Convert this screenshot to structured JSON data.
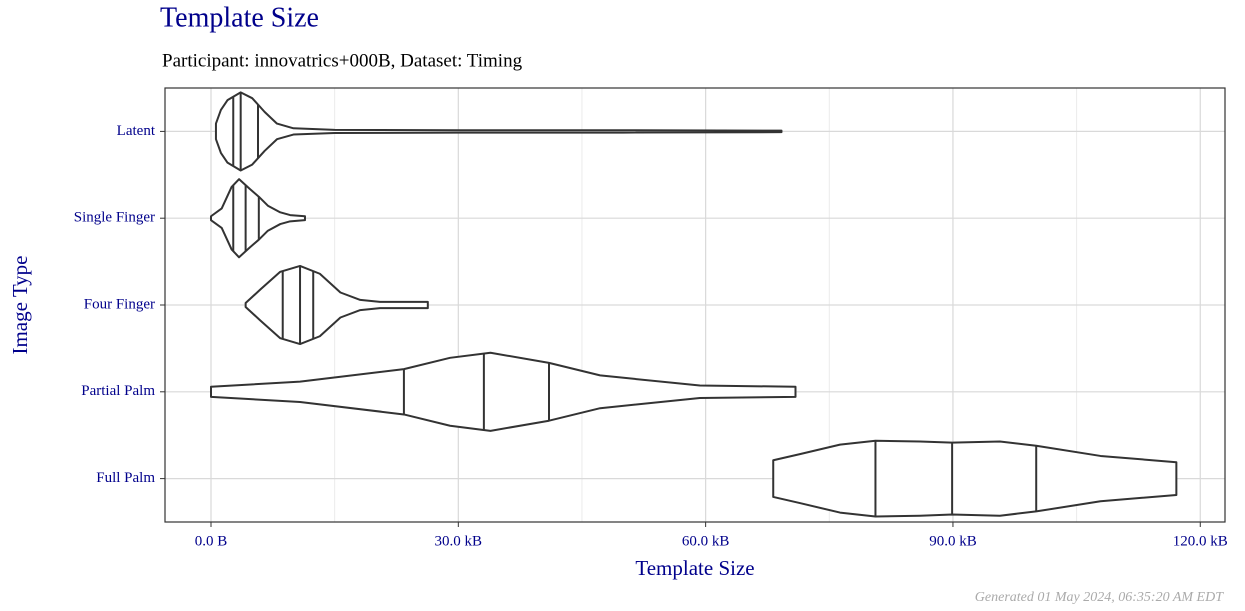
{
  "chart_data": {
    "type": "violin",
    "title": "Template Size",
    "subtitle": "Participant: innovatrics+000B, Dataset: Timing",
    "xlabel": "Template Size",
    "ylabel": "Image Type",
    "footer": "Generated 01 May 2024, 06:35:20 AM EDT",
    "categories": [
      "Latent",
      "Single Finger",
      "Four Finger",
      "Partial Palm",
      "Full Palm"
    ],
    "violins": [
      {
        "quartiles": [
          2.7,
          3.6,
          5.7
        ],
        "density": {
          "x": [
            0.6,
            1.2,
            2.0,
            3.6,
            5.0,
            6.5,
            8.0,
            10,
            15,
            30,
            50,
            69.2
          ],
          "width": [
            0.2,
            0.55,
            0.8,
            1.0,
            0.85,
            0.5,
            0.2,
            0.08,
            0.04,
            0.03,
            0.03,
            0.02
          ]
        }
      },
      {
        "quartiles": [
          2.7,
          4.2,
          5.8
        ],
        "density": {
          "x": [
            0,
            1.3,
            2.5,
            3.4,
            4.7,
            5.8,
            6.9,
            8.4,
            9.6,
            11.4
          ],
          "width": [
            0.05,
            0.25,
            0.8,
            1.0,
            0.75,
            0.55,
            0.32,
            0.15,
            0.08,
            0.05
          ]
        }
      },
      {
        "quartiles": [
          8.7,
          10.8,
          12.4
        ],
        "density": {
          "x": [
            4.2,
            6.0,
            8.4,
            10.8,
            13.2,
            15.7,
            18.1,
            20.5,
            26.3
          ],
          "width": [
            0.05,
            0.4,
            0.85,
            1.0,
            0.8,
            0.32,
            0.13,
            0.08,
            0.08
          ]
        }
      },
      {
        "quartiles": [
          23.4,
          33.1,
          41.0
        ],
        "density": {
          "x": [
            0,
            10.8,
            23.4,
            29,
            33.9,
            41,
            47.2,
            59.3,
            70.9
          ],
          "width": [
            0.13,
            0.26,
            0.58,
            0.87,
            1.0,
            0.74,
            0.42,
            0.16,
            0.13
          ]
        }
      },
      {
        "quartiles": [
          80.6,
          89.9,
          100.1
        ],
        "density": {
          "x": [
            68.2,
            71.5,
            76.3,
            80.6,
            86,
            89.9,
            95.7,
            100.1,
            107.9,
            117.1
          ],
          "width": [
            0.47,
            0.63,
            0.87,
            0.97,
            0.95,
            0.92,
            0.95,
            0.84,
            0.58,
            0.42
          ]
        }
      }
    ],
    "xlim": [
      -5.58,
      123.0
    ],
    "xticks": [
      {
        "value": 0,
        "label": "0.0 B"
      },
      {
        "value": 30,
        "label": "30.0 kB"
      },
      {
        "value": 60,
        "label": "60.0 kB"
      },
      {
        "value": 90,
        "label": "90.0 kB"
      },
      {
        "value": 120,
        "label": "120.0 kB"
      }
    ],
    "minor_xticks": [
      15,
      45,
      75,
      105
    ],
    "grid": true,
    "color": "#333333"
  }
}
